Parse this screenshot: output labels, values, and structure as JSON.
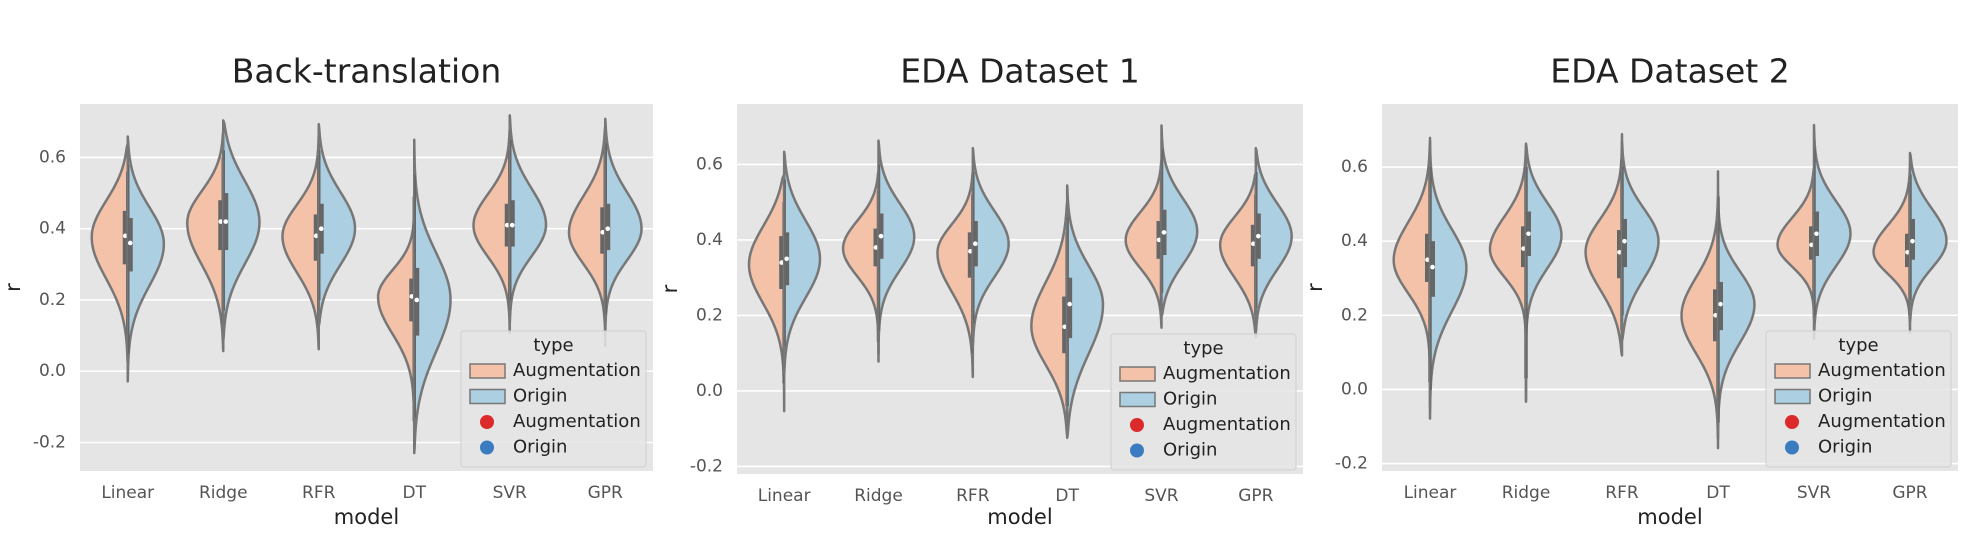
{
  "chart_data": [
    {
      "type": "violin",
      "title": "Back-translation",
      "x_label": "model",
      "y_label": "r",
      "categories": [
        "Linear",
        "Ridge",
        "RFR",
        "DT",
        "SVR",
        "GPR"
      ],
      "series": [
        {
          "name": "Augmentation",
          "color": "#dc2a2a",
          "violin_color": "#f4c1a9",
          "min": [
            0.1,
            0.13,
            0.13,
            -0.14,
            0.17,
            0.14
          ],
          "q1": [
            0.3,
            0.34,
            0.31,
            0.14,
            0.35,
            0.33
          ],
          "median": [
            0.38,
            0.42,
            0.38,
            0.21,
            0.41,
            0.39
          ],
          "q3": [
            0.45,
            0.48,
            0.44,
            0.26,
            0.47,
            0.46
          ],
          "max": [
            0.56,
            0.6,
            0.6,
            0.49,
            0.62,
            0.62
          ]
        },
        {
          "name": "Origin",
          "color": "#3b7cc0",
          "violin_color": "#accfe2",
          "min": [
            0.05,
            0.17,
            0.2,
            -0.13,
            0.2,
            0.16
          ],
          "q1": [
            0.28,
            0.34,
            0.33,
            0.1,
            0.35,
            0.34
          ],
          "median": [
            0.36,
            0.42,
            0.4,
            0.2,
            0.41,
            0.4
          ],
          "q3": [
            0.43,
            0.5,
            0.47,
            0.29,
            0.48,
            0.47
          ],
          "max": [
            0.58,
            0.62,
            0.62,
            0.55,
            0.65,
            0.64
          ]
        }
      ],
      "ylim": [
        -0.28,
        0.75
      ],
      "yticks": [
        -0.2,
        {
          "value": 0,
          "label": "0.0"
        },
        0.2,
        0.4,
        0.6
      ],
      "grid": true,
      "legend_title": "type",
      "legend": "lower right"
    },
    {
      "type": "violin",
      "title": "EDA Dataset 1",
      "x_label": "model",
      "y_label": "r",
      "categories": [
        "Linear",
        "Ridge",
        "RFR",
        "DT",
        "SVR",
        "GPR"
      ],
      "series": [
        {
          "name": "Augmentation",
          "color": "#dc2a2a",
          "violin_color": "#f4c1a9",
          "min": [
            0.02,
            0.13,
            0.1,
            -0.04,
            0.22,
            0.2
          ],
          "q1": [
            0.27,
            0.33,
            0.3,
            0.1,
            0.35,
            0.33
          ],
          "median": [
            0.34,
            0.38,
            0.37,
            0.17,
            0.4,
            0.39
          ],
          "q3": [
            0.41,
            0.43,
            0.42,
            0.25,
            0.45,
            0.44
          ],
          "max": [
            0.5,
            0.53,
            0.52,
            0.42,
            0.56,
            0.52
          ]
        },
        {
          "name": "Origin",
          "color": "#3b7cc0",
          "violin_color": "#accfe2",
          "min": [
            0.12,
            0.16,
            0.18,
            -0.04,
            0.26,
            0.22
          ],
          "q1": [
            0.28,
            0.35,
            0.33,
            0.14,
            0.36,
            0.35
          ],
          "median": [
            0.35,
            0.41,
            0.39,
            0.23,
            0.42,
            0.41
          ],
          "q3": [
            0.42,
            0.47,
            0.45,
            0.3,
            0.48,
            0.47
          ],
          "max": [
            0.56,
            0.6,
            0.58,
            0.46,
            0.64,
            0.58
          ]
        }
      ],
      "ylim": [
        -0.22,
        0.76
      ],
      "yticks": [
        -0.2,
        {
          "value": 0,
          "label": "0.0"
        },
        0.2,
        0.4,
        0.6
      ],
      "grid": true,
      "legend_title": "type",
      "legend": "lower right"
    },
    {
      "type": "violin",
      "title": "EDA Dataset 2",
      "x_label": "model",
      "y_label": "r",
      "categories": [
        "Linear",
        "Ridge",
        "RFR",
        "DT",
        "SVR",
        "GPR"
      ],
      "series": [
        {
          "name": "Augmentation",
          "color": "#dc2a2a",
          "violin_color": "#f4c1a9",
          "min": [
            0.02,
            0.03,
            0.16,
            -0.06,
            0.24,
            0.2
          ],
          "q1": [
            0.29,
            0.33,
            0.3,
            0.13,
            0.35,
            0.33
          ],
          "median": [
            0.35,
            0.38,
            0.37,
            0.2,
            0.39,
            0.37
          ],
          "q3": [
            0.42,
            0.44,
            0.43,
            0.27,
            0.44,
            0.42
          ],
          "max": [
            0.6,
            0.6,
            0.62,
            0.45,
            0.55,
            0.56
          ]
        },
        {
          "name": "Origin",
          "color": "#3b7cc0",
          "violin_color": "#accfe2",
          "min": [
            0,
            0.03,
            0.2,
            -0.09,
            0.2,
            0.24
          ],
          "q1": [
            0.25,
            0.36,
            0.33,
            0.16,
            0.36,
            0.35
          ],
          "median": [
            0.33,
            0.42,
            0.4,
            0.23,
            0.42,
            0.4
          ],
          "q3": [
            0.4,
            0.48,
            0.46,
            0.29,
            0.48,
            0.46
          ],
          "max": [
            0.6,
            0.6,
            0.6,
            0.52,
            0.65,
            0.58
          ]
        }
      ],
      "ylim": [
        -0.22,
        0.77
      ],
      "yticks": [
        -0.2,
        {
          "value": 0,
          "label": "0.0"
        },
        0.2,
        0.4,
        0.6
      ],
      "grid": true,
      "legend_title": "type",
      "legend": "lower right"
    }
  ]
}
